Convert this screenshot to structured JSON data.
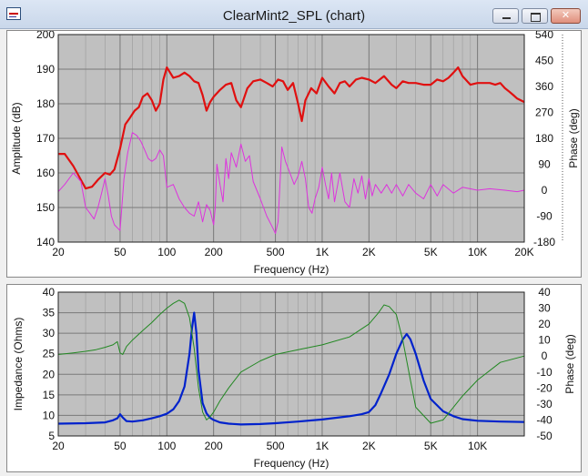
{
  "window": {
    "title": "ClearMint2_SPL (chart)"
  },
  "colors": {
    "plot_bg": "#c0c0c0",
    "grid": "#7a7a7a",
    "spl": "#e01010",
    "spl_phase": "#dd33dd",
    "impedance": "#0022cc",
    "imp_phase": "#228822"
  },
  "chart_data": [
    {
      "type": "line",
      "xlabel": "Frequency (Hz)",
      "ylabel": "Amplitude (dB)",
      "y2label": "Phase (deg)",
      "xscale": "log",
      "xlim": [
        20,
        20000
      ],
      "ylim": [
        140,
        200
      ],
      "y2lim": [
        -180,
        540
      ],
      "xticks": [
        20,
        50,
        100,
        200,
        500,
        1000,
        2000,
        5000,
        10000,
        20000
      ],
      "xtick_labels": [
        "20",
        "50",
        "100",
        "200",
        "500",
        "1K",
        "2K",
        "5K",
        "10K",
        "20K"
      ],
      "yticks": [
        140,
        150,
        160,
        170,
        180,
        190,
        200
      ],
      "ytick_labels": [
        "140",
        "150",
        "160",
        "170",
        "180",
        "190",
        "200"
      ],
      "y2ticks": [
        -180,
        -90,
        0,
        90,
        180,
        270,
        360,
        450,
        540
      ],
      "y2tick_labels": [
        "-180",
        "-90",
        "0",
        "90",
        "180",
        "270",
        "360",
        "450",
        "540"
      ],
      "series": [
        {
          "axis": "y",
          "color": "#e01010",
          "x": [
            20,
            22,
            25,
            28,
            30,
            33,
            36,
            40,
            43,
            46,
            50,
            54,
            58,
            62,
            66,
            70,
            75,
            80,
            85,
            90,
            95,
            100,
            110,
            120,
            130,
            140,
            150,
            160,
            170,
            180,
            190,
            200,
            220,
            240,
            260,
            280,
            300,
            330,
            360,
            400,
            440,
            480,
            520,
            560,
            600,
            650,
            700,
            740,
            780,
            850,
            920,
            1000,
            1100,
            1200,
            1300,
            1400,
            1500,
            1650,
            1800,
            2000,
            2200,
            2500,
            2800,
            3000,
            3300,
            3600,
            4000,
            4500,
            5000,
            5500,
            6000,
            6500,
            7000,
            7500,
            8000,
            9000,
            10000,
            11000,
            12000,
            13000,
            14000,
            15000,
            16000,
            17000,
            18000,
            20000
          ],
          "y": [
            165.5,
            165.5,
            162,
            158,
            155.5,
            156,
            158,
            160,
            159.5,
            161,
            167,
            174,
            176,
            178,
            179,
            182,
            183,
            181,
            178,
            180,
            187,
            190.5,
            187.5,
            188,
            189,
            188,
            186.5,
            186,
            182.5,
            178,
            180.5,
            182,
            184,
            185.5,
            186,
            181,
            179,
            184.5,
            186.5,
            187,
            186,
            185,
            187,
            186.5,
            184,
            186,
            180,
            175,
            181,
            184.5,
            183,
            187.5,
            185,
            183,
            186,
            186.5,
            185,
            187,
            187.5,
            187,
            186,
            188,
            185.5,
            184.5,
            186.5,
            186,
            186,
            185.5,
            185.5,
            187,
            186.5,
            187.5,
            189,
            190.5,
            188,
            185.5,
            186,
            186,
            186,
            185.5,
            186,
            184.5,
            183.5,
            182.5,
            181.5,
            180.5
          ]
        },
        {
          "axis": "y2",
          "color": "#dd33dd",
          "x": [
            20,
            22,
            25,
            28,
            30,
            32,
            34,
            36,
            38,
            40,
            42,
            44,
            46,
            50,
            53,
            56,
            60,
            64,
            68,
            72,
            76,
            80,
            85,
            90,
            95,
            100,
            110,
            120,
            130,
            140,
            150,
            160,
            170,
            180,
            190,
            200,
            205,
            210,
            220,
            230,
            240,
            250,
            260,
            280,
            300,
            320,
            340,
            360,
            400,
            440,
            480,
            500,
            520,
            550,
            580,
            620,
            660,
            700,
            740,
            780,
            820,
            860,
            900,
            950,
            1000,
            1050,
            1100,
            1150,
            1200,
            1300,
            1400,
            1500,
            1600,
            1700,
            1800,
            1900,
            2000,
            2100,
            2200,
            2400,
            2600,
            2800,
            3000,
            3300,
            3600,
            4000,
            4500,
            5000,
            5500,
            6000,
            7000,
            8000,
            10000,
            12000,
            15000,
            18000,
            20000
          ],
          "y": [
            -5,
            20,
            60,
            30,
            -60,
            -80,
            -100,
            -60,
            -10,
            40,
            -20,
            -90,
            -120,
            -140,
            40,
            130,
            200,
            190,
            170,
            140,
            110,
            100,
            110,
            140,
            120,
            10,
            20,
            -30,
            -60,
            -80,
            -90,
            -40,
            -110,
            -50,
            -70,
            -120,
            -60,
            90,
            20,
            -40,
            110,
            40,
            130,
            80,
            160,
            100,
            120,
            30,
            -30,
            -90,
            -130,
            -150,
            -110,
            150,
            100,
            60,
            20,
            50,
            100,
            40,
            -60,
            -80,
            -30,
            10,
            80,
            20,
            -30,
            60,
            -40,
            60,
            -40,
            -60,
            40,
            -10,
            50,
            -30,
            40,
            -20,
            20,
            -10,
            20,
            -10,
            20,
            -20,
            20,
            -10,
            -30,
            20,
            -20,
            20,
            -10,
            10,
            0,
            5,
            0,
            -5,
            0
          ]
        }
      ]
    },
    {
      "type": "line",
      "xlabel": "Frequency (Hz)",
      "ylabel": "Impedance (Ohms)",
      "y2label": "Phase (deg)",
      "xscale": "log",
      "xlim": [
        20,
        20000
      ],
      "ylim": [
        5,
        40
      ],
      "y2lim": [
        -50,
        40
      ],
      "xticks": [
        20,
        50,
        100,
        200,
        500,
        1000,
        2000,
        5000,
        10000
      ],
      "xtick_labels": [
        "20",
        "50",
        "100",
        "200",
        "500",
        "1K",
        "2K",
        "5K",
        "10K"
      ],
      "yticks": [
        5,
        10,
        15,
        20,
        25,
        30,
        35,
        40
      ],
      "ytick_labels": [
        "5",
        "10",
        "15",
        "20",
        "25",
        "30",
        "35",
        "40"
      ],
      "y2ticks": [
        -50,
        -40,
        -30,
        -20,
        -10,
        0,
        10,
        20,
        30,
        40
      ],
      "y2tick_labels": [
        "-50",
        "-40",
        "-30",
        "-20",
        "-10",
        "0",
        "10",
        "20",
        "30",
        "40"
      ],
      "series": [
        {
          "axis": "y",
          "color": "#0022cc",
          "x": [
            20,
            30,
            40,
            45,
            48,
            50,
            52,
            55,
            60,
            70,
            80,
            90,
            100,
            110,
            120,
            130,
            140,
            145,
            150,
            155,
            160,
            170,
            180,
            190,
            200,
            220,
            250,
            300,
            400,
            500,
            700,
            1000,
            1500,
            1800,
            2000,
            2200,
            2400,
            2700,
            3000,
            3300,
            3500,
            3700,
            4000,
            4500,
            5000,
            6000,
            7000,
            8000,
            10000,
            14000,
            20000
          ],
          "y": [
            8,
            8.1,
            8.3,
            8.8,
            9.3,
            10.3,
            9.5,
            8.6,
            8.5,
            8.8,
            9.3,
            9.8,
            10.4,
            11.5,
            13.5,
            17,
            25,
            31,
            35,
            30,
            21,
            13,
            10.5,
            9.4,
            8.9,
            8.3,
            8.0,
            7.8,
            7.9,
            8.1,
            8.5,
            9.0,
            9.8,
            10.3,
            10.8,
            12.5,
            15.5,
            20,
            25,
            28.5,
            29.8,
            28.5,
            25,
            18.5,
            14,
            11.0,
            9.8,
            9.1,
            8.7,
            8.5,
            8.4
          ]
        },
        {
          "axis": "y2",
          "color": "#228822",
          "x": [
            20,
            25,
            30,
            35,
            40,
            45,
            48,
            50,
            52,
            55,
            60,
            70,
            80,
            90,
            100,
            110,
            120,
            130,
            140,
            150,
            160,
            170,
            180,
            190,
            200,
            220,
            250,
            300,
            400,
            500,
            700,
            1000,
            1500,
            2000,
            2300,
            2500,
            2700,
            3000,
            3300,
            3700,
            4000,
            5000,
            6000,
            7000,
            8000,
            10000,
            14000,
            20000
          ],
          "y": [
            1,
            2,
            3,
            4,
            5.5,
            7,
            9,
            2,
            1,
            6,
            10,
            16,
            21,
            26,
            30,
            33,
            35,
            33,
            24,
            5,
            -20,
            -35,
            -40,
            -38,
            -35,
            -28,
            -20,
            -10,
            -3,
            1,
            4,
            7,
            12,
            20,
            27,
            32,
            31,
            26,
            10,
            -15,
            -32,
            -42,
            -40,
            -32,
            -25,
            -15,
            -4,
            0
          ]
        }
      ]
    }
  ]
}
